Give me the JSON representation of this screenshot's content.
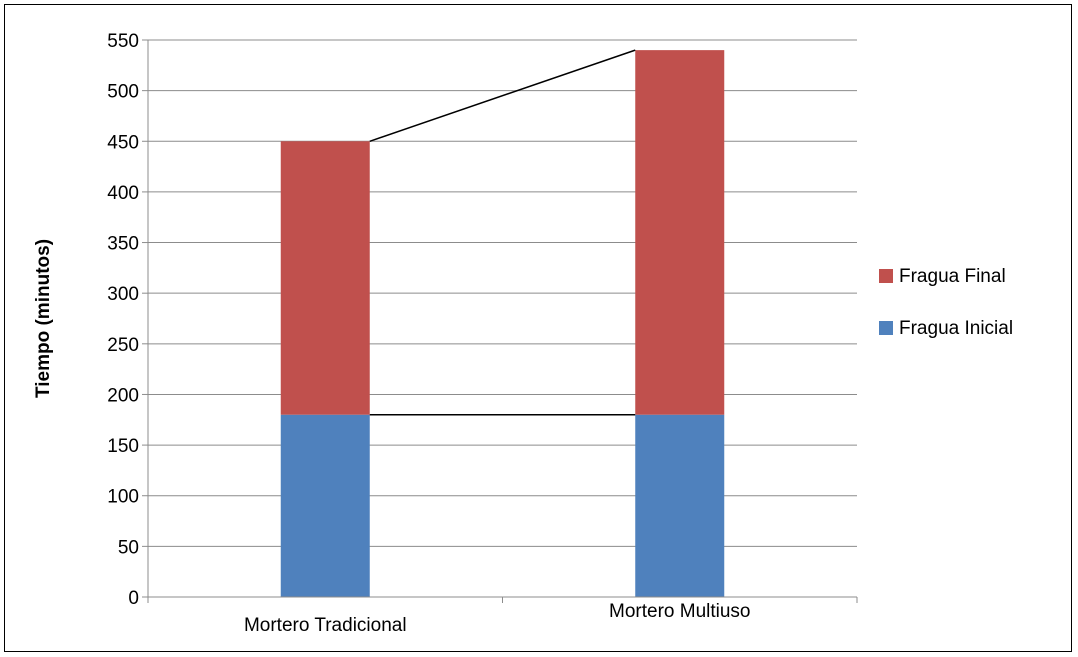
{
  "chart_data": {
    "type": "bar",
    "stacked": true,
    "categories": [
      "Mortero Tradicional",
      "Mortero Multiuso"
    ],
    "series": [
      {
        "name": "Fragua Inicial",
        "values": [
          180,
          180
        ],
        "color": "#4f81bd"
      },
      {
        "name": "Fragua Final",
        "values": [
          270,
          360
        ],
        "color": "#c0504d"
      }
    ],
    "title": "",
    "xlabel": "",
    "ylabel": "Tiempo (minutos)",
    "ylim": [
      0,
      550
    ],
    "yticks": [
      0,
      50,
      100,
      150,
      200,
      250,
      300,
      350,
      400,
      450,
      500,
      550
    ],
    "grid": true,
    "legend": "right",
    "series_lines": true
  }
}
